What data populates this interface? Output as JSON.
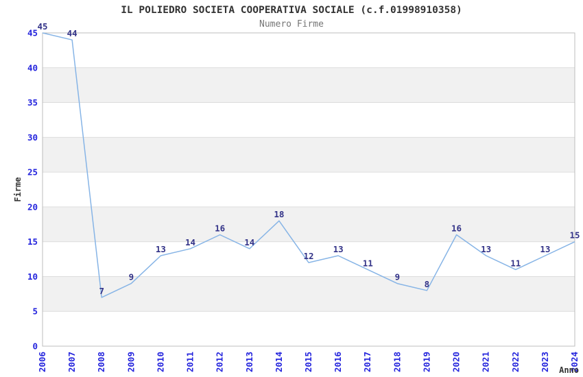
{
  "chart_data": {
    "type": "line",
    "title": "IL POLIEDRO SOCIETA COOPERATIVA SOCIALE (c.f.01998910358)",
    "subtitle": "Numero Firme",
    "xlabel": "Anno",
    "ylabel": "Firme",
    "x": [
      "2006",
      "2007",
      "2008",
      "2009",
      "2010",
      "2011",
      "2012",
      "2013",
      "2014",
      "2015",
      "2016",
      "2017",
      "2018",
      "2019",
      "2020",
      "2021",
      "2022",
      "2023",
      "2024"
    ],
    "values": [
      45,
      44,
      7,
      9,
      13,
      14,
      16,
      14,
      18,
      12,
      13,
      11,
      9,
      8,
      16,
      13,
      11,
      13,
      15
    ],
    "ylim": [
      0,
      45
    ],
    "ytick_step": 5,
    "yticks": [
      0,
      5,
      10,
      15,
      20,
      25,
      30,
      35,
      40,
      45
    ],
    "grid": "alternating-bands",
    "legend_position": "none",
    "data_labels_visible": true,
    "colors": {
      "line": "#86b4e6",
      "data_label": "#333388",
      "tick_label": "#2424dd",
      "band": "#f1f1f1",
      "gridline": "#dcdcdc",
      "plot_border": "#bcbcbc",
      "title": "#333333",
      "subtitle": "#757575",
      "axis_title": "#333333",
      "background": "#ffffff"
    }
  }
}
